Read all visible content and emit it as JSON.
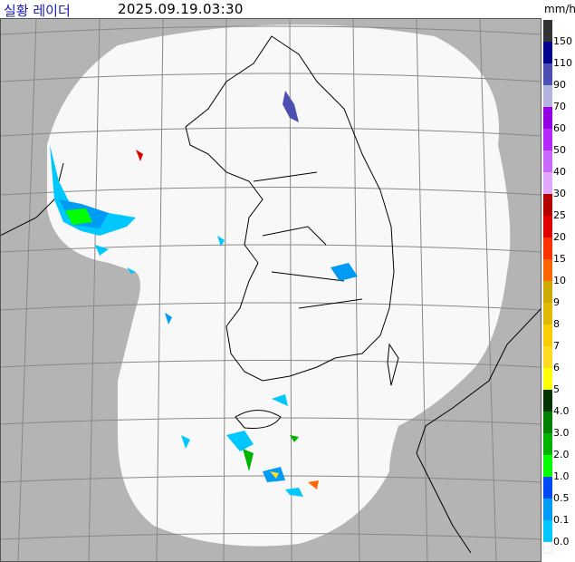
{
  "header": {
    "title": "실황 레이더",
    "time": "2025.09.19.03:30"
  },
  "legend": {
    "unit": "mm/h",
    "levels": [
      {
        "label": "150",
        "color": "#333333"
      },
      {
        "label": "110",
        "color": "#000390"
      },
      {
        "label": "90",
        "color": "#4c4eb1"
      },
      {
        "label": "70",
        "color": "#b3b4de"
      },
      {
        "label": "60",
        "color": "#9300e4"
      },
      {
        "label": "50",
        "color": "#b329ff"
      },
      {
        "label": "40",
        "color": "#c969ff"
      },
      {
        "label": "30",
        "color": "#e0a9ff"
      },
      {
        "label": "25",
        "color": "#b40000"
      },
      {
        "label": "20",
        "color": "#e00000"
      },
      {
        "label": "15",
        "color": "#ff3300"
      },
      {
        "label": "10",
        "color": "#ff6600"
      },
      {
        "label": "9",
        "color": "#ccaa00"
      },
      {
        "label": "8",
        "color": "#e0b900"
      },
      {
        "label": "7",
        "color": "#f9cd00"
      },
      {
        "label": "6",
        "color": "#ffdc1f"
      },
      {
        "label": "5",
        "color": "#ffff00"
      },
      {
        "label": "4.0",
        "color": "#003300"
      },
      {
        "label": "3.0",
        "color": "#008000"
      },
      {
        "label": "2.0",
        "color": "#00b300"
      },
      {
        "label": "1.0",
        "color": "#00ff00"
      },
      {
        "label": "0.5",
        "color": "#0049f5"
      },
      {
        "label": "0.1",
        "color": "#009bf5"
      },
      {
        "label": "0.0",
        "color": "#00c8ff"
      }
    ]
  }
}
